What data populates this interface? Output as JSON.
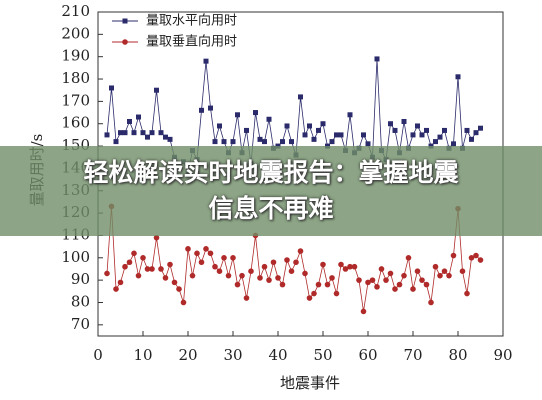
{
  "chart_data": {
    "type": "line",
    "xlabel": "地震事件",
    "ylabel": "量取用时/s",
    "x": [
      2,
      3,
      4,
      5,
      6,
      7,
      8,
      9,
      10,
      11,
      12,
      13,
      14,
      15,
      16,
      17,
      18,
      19,
      20,
      21,
      22,
      23,
      24,
      25,
      26,
      27,
      28,
      29,
      30,
      31,
      32,
      33,
      34,
      35,
      36,
      37,
      38,
      39,
      40,
      41,
      42,
      43,
      44,
      45,
      46,
      47,
      48,
      49,
      50,
      51,
      52,
      53,
      54,
      55,
      56,
      57,
      58,
      59,
      60,
      61,
      62,
      63,
      64,
      65,
      66,
      67,
      68,
      69,
      70,
      71,
      72,
      73,
      74,
      75,
      76,
      77,
      78,
      79,
      80,
      81,
      82,
      83,
      84,
      85
    ],
    "series": [
      {
        "name": "量取水平向用时",
        "color": "#2b2b6b",
        "marker": "square",
        "values": [
          155,
          176,
          152,
          156,
          156,
          161,
          156,
          163,
          156,
          154,
          156,
          175,
          156,
          154,
          153,
          145,
          141,
          143,
          138,
          148,
          144,
          166,
          188,
          167,
          152,
          159,
          152,
          147,
          152,
          164,
          147,
          157,
          142,
          165,
          153,
          152,
          162,
          149,
          150,
          152,
          159,
          152,
          146,
          172,
          155,
          159,
          153,
          157,
          160,
          150,
          152,
          155,
          155,
          148,
          164,
          147,
          149,
          155,
          151,
          145,
          189,
          148,
          144,
          160,
          157,
          147,
          161,
          149,
          155,
          159,
          155,
          157,
          150,
          152,
          154,
          157,
          149,
          151,
          181,
          149,
          157,
          153,
          156,
          158
        ]
      },
      {
        "name": "量取垂直向用时",
        "color": "#b02a2a",
        "marker": "circle",
        "values": [
          93,
          123,
          86,
          89,
          96,
          98,
          102,
          92,
          100,
          95,
          95,
          109,
          95,
          91,
          97,
          89,
          86,
          80,
          104,
          92,
          102,
          98,
          104,
          102,
          96,
          94,
          100,
          92,
          100,
          88,
          92,
          82,
          94,
          110,
          91,
          96,
          90,
          98,
          91,
          88,
          99,
          94,
          98,
          103,
          93,
          82,
          84,
          88,
          97,
          88,
          91,
          84,
          97,
          95,
          96,
          96,
          90,
          76,
          89,
          90,
          87,
          95,
          90,
          93,
          86,
          88,
          92,
          100,
          86,
          94,
          90,
          88,
          80,
          96,
          92,
          94,
          92,
          101,
          122,
          94,
          84,
          100,
          101,
          99
        ]
      }
    ],
    "xlim": [
      0,
      90
    ],
    "xticks": [
      0,
      10,
      20,
      30,
      40,
      50,
      60,
      70,
      80,
      90
    ],
    "ylim": [
      65,
      210
    ],
    "yticks": [
      70,
      80,
      90,
      100,
      110,
      120,
      130,
      140,
      150,
      160,
      170,
      180,
      190,
      200,
      210
    ],
    "legend": "upper left",
    "grid": false
  },
  "banner": [
    "轻松解读实时地震报告：掌握地震",
    "信息不再难"
  ]
}
